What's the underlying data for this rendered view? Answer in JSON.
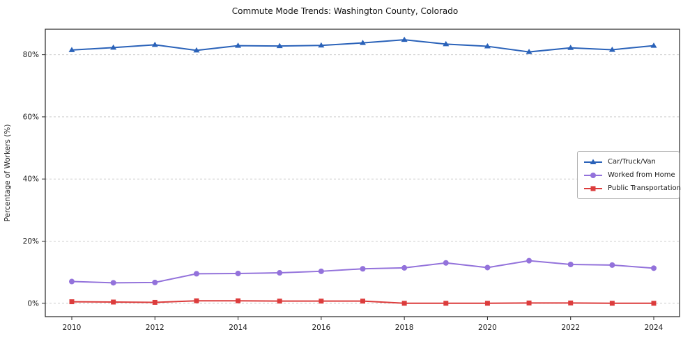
{
  "chart_data": {
    "type": "line",
    "title": "Commute Mode Trends: Washington County, Colorado",
    "xlabel": "",
    "ylabel": "Percentage of Workers (%)",
    "x": [
      2010,
      2011,
      2012,
      2013,
      2014,
      2015,
      2016,
      2017,
      2018,
      2019,
      2020,
      2021,
      2022,
      2023,
      2024
    ],
    "xticks": [
      2010,
      2012,
      2014,
      2016,
      2018,
      2020,
      2022,
      2024
    ],
    "yticks": [
      0,
      20,
      40,
      60,
      80
    ],
    "ytick_suffix": "%",
    "ylim": [
      -4.3,
      88.2
    ],
    "grid": true,
    "grid_style": "dashed-horizontal",
    "legend_position": "center-right",
    "series": [
      {
        "name": "Car/Truck/Van",
        "color": "#2a62b9",
        "marker": "triangle",
        "values": [
          81.5,
          82.3,
          83.2,
          81.4,
          82.9,
          82.8,
          83.0,
          83.8,
          84.8,
          83.4,
          82.7,
          80.9,
          82.2,
          81.6,
          82.9
        ]
      },
      {
        "name": "Worked from Home",
        "color": "#9372db",
        "marker": "circle",
        "values": [
          7.0,
          6.6,
          6.7,
          9.5,
          9.6,
          9.8,
          10.3,
          11.1,
          11.4,
          13.0,
          11.5,
          13.7,
          12.5,
          12.3,
          11.3
        ]
      },
      {
        "name": "Public Transportation",
        "color": "#dc3c3c",
        "marker": "square",
        "values": [
          0.5,
          0.4,
          0.3,
          0.8,
          0.8,
          0.7,
          0.7,
          0.7,
          0.0,
          0.0,
          0.0,
          0.1,
          0.1,
          0.0,
          0.0
        ]
      }
    ]
  }
}
